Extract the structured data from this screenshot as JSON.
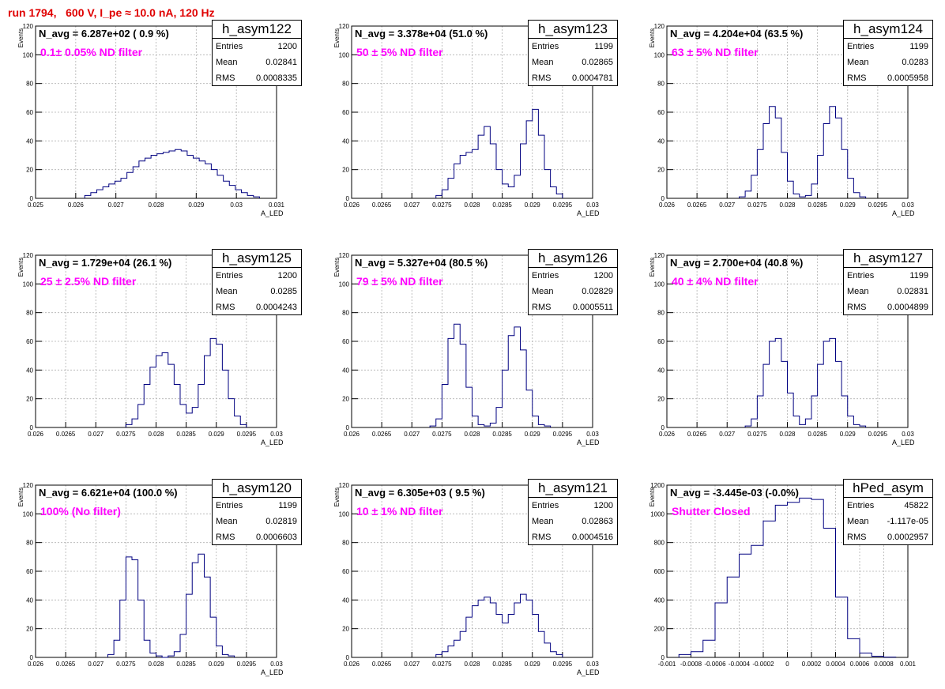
{
  "run_title": "run 1794,   600 V, I_pe ≈ 10.0 nA, 120 Hz",
  "colors": {
    "title": "#e00000",
    "histogram": "#000080",
    "filter_label": "#ff00ff",
    "grid": "#b0b0b0"
  },
  "stat_labels": {
    "entries": "Entries",
    "mean": "Mean",
    "rms": "RMS"
  },
  "chart_data": [
    {
      "type": "histogram",
      "name": "h_asym122",
      "title": "N_avg = 6.287e+02 ( 0.9 %)",
      "annotation": "0.1± 0.05% ND filter",
      "xlabel": "A_LED",
      "ylabel": "Events",
      "xlim": [
        0.025,
        0.031
      ],
      "ylim": [
        0,
        120
      ],
      "xticks": [
        "0.025",
        "0.026",
        "0.027",
        "0.028",
        "0.029",
        "0.03",
        "0.031"
      ],
      "yticks": [
        "0",
        "20",
        "40",
        "60",
        "80",
        "100",
        "120"
      ],
      "grid": true,
      "stats": {
        "entries": "1200",
        "mean": "0.02841",
        "rms": "0.0008335"
      },
      "x": [
        0.0263,
        0.02645,
        0.0266,
        0.02675,
        0.0269,
        0.02705,
        0.0272,
        0.02735,
        0.0275,
        0.02765,
        0.0278,
        0.02795,
        0.0281,
        0.02825,
        0.0284,
        0.02855,
        0.0287,
        0.02885,
        0.029,
        0.02915,
        0.0293,
        0.02945,
        0.0296,
        0.02975,
        0.0299,
        0.03005,
        0.0302,
        0.03035,
        0.0305
      ],
      "y": [
        2,
        4,
        6,
        8,
        10,
        12,
        14,
        18,
        22,
        26,
        28,
        30,
        31,
        32,
        33,
        34,
        33,
        30,
        28,
        26,
        24,
        20,
        16,
        12,
        9,
        6,
        4,
        2,
        1
      ]
    },
    {
      "type": "histogram",
      "name": "h_asym123",
      "title": "N_avg = 3.378e+04 (51.0 %)",
      "annotation": "50 ± 5% ND filter",
      "xlabel": "A_LED",
      "ylabel": "Events",
      "xlim": [
        0.026,
        0.03
      ],
      "ylim": [
        0,
        120
      ],
      "xticks": [
        "0.026",
        "0.0265",
        "0.027",
        "0.0275",
        "0.028",
        "0.0285",
        "0.029",
        "0.0295",
        "0.03"
      ],
      "yticks": [
        "0",
        "20",
        "40",
        "60",
        "80",
        "100",
        "120"
      ],
      "grid": true,
      "stats": {
        "entries": "1199",
        "mean": "0.02865",
        "rms": "0.0004781"
      },
      "x": [
        0.02745,
        0.02755,
        0.02765,
        0.02775,
        0.02785,
        0.02795,
        0.02805,
        0.02815,
        0.02825,
        0.02835,
        0.02845,
        0.02855,
        0.02865,
        0.02875,
        0.02885,
        0.02895,
        0.02905,
        0.02915,
        0.02925,
        0.02935,
        0.02945
      ],
      "y": [
        2,
        6,
        14,
        24,
        30,
        32,
        34,
        44,
        50,
        38,
        20,
        10,
        8,
        16,
        38,
        54,
        62,
        44,
        20,
        8,
        3
      ]
    },
    {
      "type": "histogram",
      "name": "h_asym124",
      "title": "N_avg = 4.204e+04 (63.5 %)",
      "annotation": "63 ± 5% ND filter",
      "xlabel": "A_LED",
      "ylabel": "Events",
      "xlim": [
        0.026,
        0.03
      ],
      "ylim": [
        0,
        120
      ],
      "xticks": [
        "0.026",
        "0.0265",
        "0.027",
        "0.0275",
        "0.028",
        "0.0285",
        "0.029",
        "0.0295",
        "0.03"
      ],
      "yticks": [
        "0",
        "20",
        "40",
        "60",
        "80",
        "100",
        "120"
      ],
      "grid": true,
      "stats": {
        "entries": "1199",
        "mean": "0.0283",
        "rms": "0.0005958"
      },
      "x": [
        0.02725,
        0.02735,
        0.02745,
        0.02755,
        0.02765,
        0.02775,
        0.02785,
        0.02795,
        0.02805,
        0.02815,
        0.02825,
        0.02835,
        0.02845,
        0.02855,
        0.02865,
        0.02875,
        0.02885,
        0.02895,
        0.02905,
        0.02915,
        0.02925
      ],
      "y": [
        1,
        5,
        16,
        34,
        52,
        64,
        56,
        32,
        12,
        3,
        1,
        2,
        10,
        30,
        52,
        64,
        56,
        34,
        14,
        4,
        1
      ]
    },
    {
      "type": "histogram",
      "name": "h_asym125",
      "title": "N_avg = 1.729e+04 (26.1 %)",
      "annotation": "25 ± 2.5% ND filter",
      "xlabel": "A_LED",
      "ylabel": "Events",
      "xlim": [
        0.026,
        0.03
      ],
      "ylim": [
        0,
        120
      ],
      "xticks": [
        "0.026",
        "0.0265",
        "0.027",
        "0.0275",
        "0.028",
        "0.0285",
        "0.029",
        "0.0295",
        "0.03"
      ],
      "yticks": [
        "0",
        "20",
        "40",
        "60",
        "80",
        "100",
        "120"
      ],
      "grid": true,
      "stats": {
        "entries": "1200",
        "mean": "0.0285",
        "rms": "0.0004243"
      },
      "x": [
        0.02755,
        0.02765,
        0.02775,
        0.02785,
        0.02795,
        0.02805,
        0.02815,
        0.02825,
        0.02835,
        0.02845,
        0.02855,
        0.02865,
        0.02875,
        0.02885,
        0.02895,
        0.02905,
        0.02915,
        0.02925,
        0.02935,
        0.02945
      ],
      "y": [
        2,
        6,
        16,
        30,
        42,
        50,
        52,
        44,
        30,
        16,
        10,
        14,
        30,
        50,
        62,
        58,
        40,
        20,
        8,
        2
      ]
    },
    {
      "type": "histogram",
      "name": "h_asym126",
      "title": "N_avg = 5.327e+04 (80.5 %)",
      "annotation": "79 ± 5% ND filter",
      "xlabel": "A_LED",
      "ylabel": "Events",
      "xlim": [
        0.026,
        0.03
      ],
      "ylim": [
        0,
        120
      ],
      "xticks": [
        "0.026",
        "0.0265",
        "0.027",
        "0.0275",
        "0.028",
        "0.0285",
        "0.029",
        "0.0295",
        "0.03"
      ],
      "yticks": [
        "0",
        "20",
        "40",
        "60",
        "80",
        "100",
        "120"
      ],
      "grid": true,
      "stats": {
        "entries": "1200",
        "mean": "0.02829",
        "rms": "0.0005511"
      },
      "x": [
        0.02735,
        0.02745,
        0.02755,
        0.02765,
        0.02775,
        0.02785,
        0.02795,
        0.02805,
        0.02815,
        0.02825,
        0.02835,
        0.02845,
        0.02855,
        0.02865,
        0.02875,
        0.02885,
        0.02895,
        0.02905,
        0.02915,
        0.02925
      ],
      "y": [
        1,
        6,
        30,
        62,
        72,
        58,
        28,
        8,
        2,
        1,
        3,
        14,
        40,
        64,
        70,
        54,
        26,
        8,
        2,
        1
      ]
    },
    {
      "type": "histogram",
      "name": "h_asym127",
      "title": "N_avg = 2.700e+04 (40.8 %)",
      "annotation": "40 ± 4% ND filter",
      "xlabel": "A_LED",
      "ylabel": "Events",
      "xlim": [
        0.026,
        0.03
      ],
      "ylim": [
        0,
        120
      ],
      "xticks": [
        "0.026",
        "0.0265",
        "0.027",
        "0.0275",
        "0.028",
        "0.0285",
        "0.029",
        "0.0295",
        "0.03"
      ],
      "yticks": [
        "0",
        "20",
        "40",
        "60",
        "80",
        "100",
        "120"
      ],
      "grid": true,
      "stats": {
        "entries": "1199",
        "mean": "0.02831",
        "rms": "0.0004899"
      },
      "x": [
        0.02735,
        0.02745,
        0.02755,
        0.02765,
        0.02775,
        0.02785,
        0.02795,
        0.02805,
        0.02815,
        0.02825,
        0.02835,
        0.02845,
        0.02855,
        0.02865,
        0.02875,
        0.02885,
        0.02895,
        0.02905,
        0.02915,
        0.02925
      ],
      "y": [
        1,
        6,
        22,
        44,
        60,
        62,
        46,
        24,
        8,
        2,
        6,
        22,
        44,
        60,
        62,
        46,
        22,
        8,
        2,
        1
      ]
    },
    {
      "type": "histogram",
      "name": "h_asym120",
      "title": "N_avg = 6.621e+04 (100.0 %)",
      "annotation": "100% (No filter)",
      "xlabel": "A_LED",
      "ylabel": "Events",
      "xlim": [
        0.026,
        0.03
      ],
      "ylim": [
        0,
        120
      ],
      "xticks": [
        "0.026",
        "0.0265",
        "0.027",
        "0.0275",
        "0.028",
        "0.0285",
        "0.029",
        "0.0295",
        "0.03"
      ],
      "yticks": [
        "0",
        "20",
        "40",
        "60",
        "80",
        "100",
        "120"
      ],
      "grid": true,
      "stats": {
        "entries": "1199",
        "mean": "0.02819",
        "rms": "0.0006603"
      },
      "x": [
        0.02725,
        0.02735,
        0.02745,
        0.02755,
        0.02765,
        0.02775,
        0.02785,
        0.02795,
        0.02805,
        0.02815,
        0.02825,
        0.02835,
        0.02845,
        0.02855,
        0.02865,
        0.02875,
        0.02885,
        0.02895,
        0.02905,
        0.02915,
        0.02925
      ],
      "y": [
        2,
        12,
        40,
        70,
        68,
        40,
        12,
        3,
        1,
        0,
        1,
        4,
        16,
        44,
        66,
        72,
        56,
        28,
        8,
        2,
        1
      ]
    },
    {
      "type": "histogram",
      "name": "h_asym121",
      "title": "N_avg = 6.305e+03 ( 9.5 %)",
      "annotation": "10 ± 1% ND filter",
      "xlabel": "A_LED",
      "ylabel": "Events",
      "xlim": [
        0.026,
        0.03
      ],
      "ylim": [
        0,
        120
      ],
      "xticks": [
        "0.026",
        "0.0265",
        "0.027",
        "0.0275",
        "0.028",
        "0.0285",
        "0.029",
        "0.0295",
        "0.03"
      ],
      "yticks": [
        "0",
        "20",
        "40",
        "60",
        "80",
        "100",
        "120"
      ],
      "grid": true,
      "stats": {
        "entries": "1200",
        "mean": "0.02863",
        "rms": "0.0004516"
      },
      "x": [
        0.02745,
        0.02755,
        0.02765,
        0.02775,
        0.02785,
        0.02795,
        0.02805,
        0.02815,
        0.02825,
        0.02835,
        0.02845,
        0.02855,
        0.02865,
        0.02875,
        0.02885,
        0.02895,
        0.02905,
        0.02915,
        0.02925,
        0.02935,
        0.02945
      ],
      "y": [
        2,
        4,
        8,
        12,
        18,
        28,
        36,
        40,
        42,
        38,
        30,
        24,
        30,
        38,
        44,
        40,
        30,
        18,
        10,
        4,
        2
      ]
    },
    {
      "type": "histogram",
      "name": "hPed_asym",
      "title": "N_avg = -3.445e-03 (-0.0%)",
      "annotation": "Shutter Closed",
      "xlabel": "",
      "ylabel": "Events",
      "xlim": [
        -0.001,
        0.001
      ],
      "ylim": [
        0,
        1200
      ],
      "xticks": [
        "-0.001",
        "-0.0008",
        "-0.0006",
        "-0.0004",
        "-0.0002",
        "0",
        "0.0002",
        "0.0004",
        "0.0006",
        "0.0008",
        "0.001"
      ],
      "yticks": [
        "0",
        "200",
        "400",
        "600",
        "800",
        "1000",
        "1200"
      ],
      "grid": true,
      "stats": {
        "entries": "45822",
        "mean": "-1.117e-05",
        "rms": "0.0002957"
      },
      "x": [
        -0.00085,
        -0.00075,
        -0.00065,
        -0.00055,
        -0.00045,
        -0.00035,
        -0.00025,
        -0.00015,
        -5e-05,
        5e-05,
        0.00015,
        0.00025,
        0.00035,
        0.00045,
        0.00055,
        0.00065,
        0.00075,
        0.00085
      ],
      "y": [
        20,
        40,
        120,
        380,
        560,
        720,
        780,
        950,
        1060,
        1080,
        1110,
        1100,
        900,
        420,
        130,
        30,
        8,
        2
      ]
    }
  ]
}
